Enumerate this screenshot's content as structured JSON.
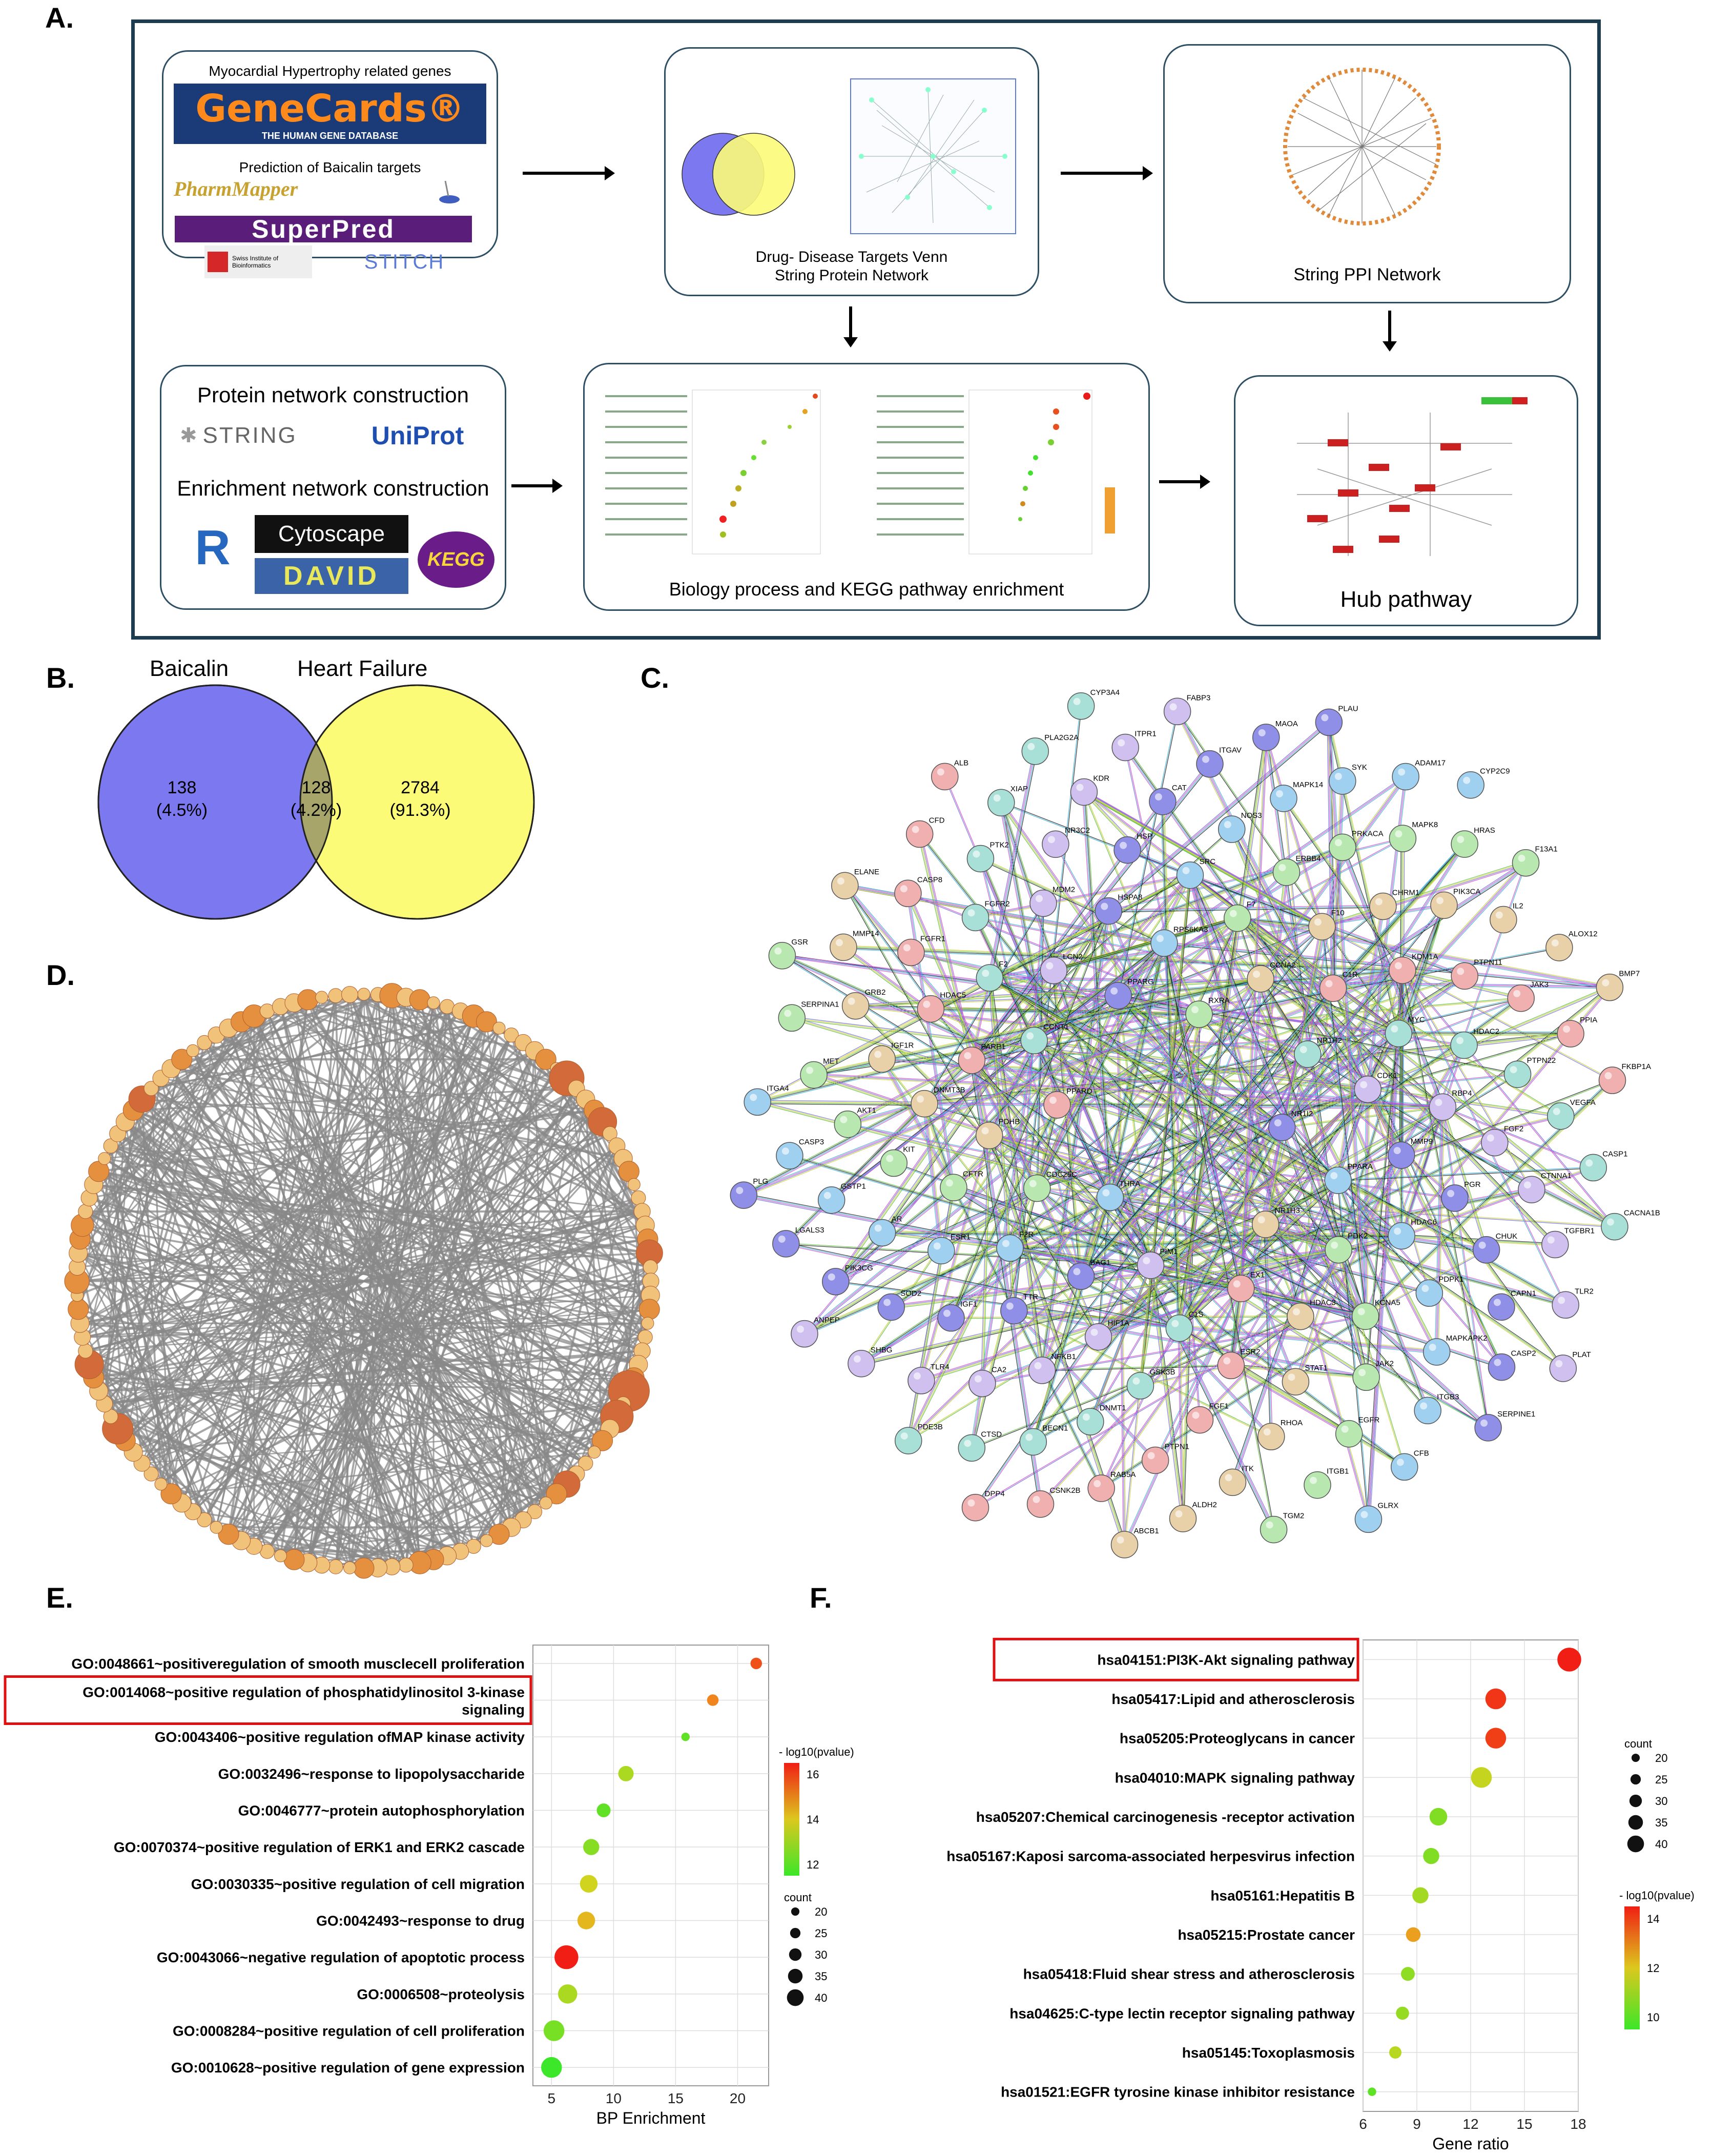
{
  "panels": {
    "a": "A.",
    "b": "B.",
    "c": "C.",
    "d": "D.",
    "e": "E.",
    "f": "F."
  },
  "panel_a": {
    "box1": {
      "title": "Myocardial Hypertrophy related genes",
      "genecards_logo": "GeneCards®",
      "genecards_sub": "THE HUMAN GENE DATABASE",
      "prediction_title": "Prediction of Baicalin targets",
      "pharmmapper_logo": "PharmMapper",
      "superpred_logo": "SuperPred",
      "sib_logo": "Swiss Institute of Bioinformatics",
      "stitch_logo": "STITCH"
    },
    "box2_caption_line1": "Drug- Disease Targets Venn",
    "box2_caption_line2": "String Protein Network",
    "box3_caption": "String PPI Network",
    "box4": {
      "protein_title": "Protein network construction",
      "string_logo": "STRING",
      "uniprot_logo": "UniProt",
      "enrichment_title": "Enrichment network construction",
      "r_logo": "R",
      "cytoscape_logo": "Cytoscape",
      "david_logo": "DAVID",
      "kegg_logo": "KEGG"
    },
    "box5_caption": "Biology process and KEGG pathway enrichment",
    "box6_caption": "Hub pathway"
  },
  "panel_b": {
    "left_title": "Baicalin",
    "right_title": "Heart Failure",
    "left_count": "138",
    "left_pct": "(4.5%)",
    "mid_count": "128",
    "mid_pct": "(4.2%)",
    "right_count": "2784",
    "right_pct": "(91.3%)",
    "colors": {
      "left": "#7b78f0",
      "right": "#fbfb78",
      "overlap": "#a8a56a"
    }
  },
  "panel_c_nodes": [
    "NR1I2",
    "THRA",
    "RXRA",
    "NR1H3",
    "PPARD",
    "NR1H2",
    "PIM1",
    "PPARG",
    "PPARA",
    "CDC25C",
    "CCNA2",
    "EX1",
    "CCNT1",
    "CDK1",
    "BAG1",
    "RPS6KA3",
    "PDK2",
    "PDHB",
    "C1R",
    "C1S",
    "LCN2",
    "MMP9",
    "F2R",
    "F7",
    "HDAC3",
    "PARP1",
    "MYC",
    "HIF1A",
    "HSPA8",
    "HDAC6",
    "CFTR",
    "F10",
    "ESR2",
    "F2",
    "RBP4",
    "TTR",
    "SRC",
    "KCNA5",
    "DNMT3B",
    "KDM1A",
    "GSK3B",
    "MDM2",
    "PGR",
    "ESR1",
    "ERBB4",
    "STAT1",
    "HDAC5",
    "HDAC2",
    "NFKB1",
    "HSP",
    "PDPK1",
    "KIT",
    "CHRM1",
    "FGF1",
    "FGFR2",
    "FGF2",
    "IGF1",
    "NOS3",
    "JAK2",
    "IGF1R",
    "PTPN11",
    "DNMT1",
    "NR3C2",
    "CHUK",
    "AR",
    "PRKACA",
    "RHOA",
    "FGFR1",
    "PTPN22",
    "CA2",
    "CAT",
    "MAPKAPK2",
    "AKT1",
    "PIK3CA",
    "PTPN1",
    "PTK2",
    "CTNNA1",
    "SOD2",
    "MAPK14",
    "EGFR",
    "GRB2",
    "JAK3",
    "BECN1",
    "KDR",
    "CAPN1",
    "GSTP1",
    "MAPK8",
    "ITK",
    "CASP8",
    "VEGFA",
    "TLR4",
    "ITGAV",
    "ITGB3",
    "MET",
    "IL2",
    "RAB5A",
    "XIAP",
    "TGFBR1",
    "PIK3CG",
    "SYK",
    "ITGB1",
    "MMP14",
    "PPIA",
    "CTSD",
    "ITPR1",
    "CASP2",
    "CASP3",
    "HRAS",
    "ALDH2",
    "CFD",
    "CASP1",
    "SHBG",
    "MAOA",
    "CFB",
    "SERPINA1",
    "ALOX12",
    "CSNK2B",
    "PLA2G2A",
    "TLR2",
    "LGALS3",
    "ADAM17",
    "TGM2",
    "ELANE",
    "FKBP1A",
    "PDE3B",
    "FABP3",
    "SERPINE1",
    "ITGA4",
    "F13A1",
    "ABCB1",
    "ALB",
    "CACNA1B",
    "ANPEP",
    "PLAU",
    "GLRX",
    "GSR",
    "BMP7",
    "DPP4",
    "CYP3A4",
    "PLAT",
    "PLG",
    "CYP2C9"
  ],
  "panel_e": {
    "chart_data": {
      "type": "scatter",
      "title": "",
      "xlabel": "BP Enrichment",
      "ylabel": "",
      "xlim": [
        3.5,
        22.5
      ],
      "xticks": [
        5,
        10,
        15,
        20
      ],
      "categories": [
        "GO:0048661~positiveregulation of smooth musclecell proliferation",
        "GO:0014068~positive regulation of phosphatidylinositol 3-kinase signaling",
        "GO:0043406~positive regulation ofMAP kinase activity",
        "GO:0032496~response to lipopolysaccharide",
        "GO:0046777~protein autophosphorylation",
        "GO:0070374~positive regulation of ERK1 and ERK2 cascade",
        "GO:0030335~positive regulation of cell migration",
        "GO:0042493~response to drug",
        "GO:0043066~negative regulation of apoptotic process",
        "GO:0006508~proteolysis",
        "GO:0008284~positive regulation of cell proliferation",
        "GO:0010628~positive regulation of gene expression"
      ],
      "x": [
        21.5,
        18,
        15.8,
        11,
        9.2,
        8.2,
        8,
        7.8,
        6.2,
        6.3,
        5.2,
        5
      ],
      "count": [
        22,
        22,
        18,
        27,
        25,
        28,
        30,
        30,
        38,
        32,
        34,
        34
      ],
      "neglog10p": [
        15.5,
        14.5,
        10.5,
        11.5,
        10.5,
        11,
        12,
        13,
        16.5,
        11.5,
        10.8,
        10
      ],
      "color_legend_title": "- log10(pvalue)",
      "color_ticks": [
        "16",
        "14",
        "12"
      ],
      "size_legend_title": "count",
      "size_ticks": [
        "20",
        "25",
        "30",
        "35",
        "40"
      ],
      "highlighted": [
        1
      ]
    }
  },
  "panel_f": {
    "chart_data": {
      "type": "scatter",
      "title": "",
      "xlabel": "Gene ratio",
      "ylabel": "",
      "xlim": [
        6,
        18
      ],
      "xticks": [
        6,
        9,
        12,
        15,
        18
      ],
      "categories": [
        "hsa04151:PI3K-Akt signaling pathway",
        "hsa05417:Lipid and atherosclerosis",
        "hsa05205:Proteoglycans in cancer",
        "hsa04010:MAPK signaling pathway",
        "hsa05207:Chemical carcinogenesis -receptor activation",
        "hsa05167:Kaposi sarcoma-associated herpesvirus infection",
        "hsa05161:Hepatitis B",
        "hsa05215:Prostate cancer",
        "hsa05418:Fluid shear stress and atherosclerosis",
        "hsa04625:C-type lectin receptor signaling pathway",
        "hsa05145:Toxoplasmosis",
        "hsa01521:EGFR tyrosine kinase inhibitor resistance"
      ],
      "x": [
        17.5,
        13.4,
        13.4,
        12.6,
        10.2,
        9.8,
        9.2,
        8.8,
        8.5,
        8.2,
        7.8,
        6.5
      ],
      "count": [
        38,
        34,
        34,
        34,
        30,
        28,
        28,
        26,
        25,
        24,
        23,
        18
      ],
      "neglog10p": [
        16,
        15.5,
        15.3,
        11,
        10,
        10,
        10.5,
        13,
        10.2,
        10.3,
        10.8,
        9.5
      ],
      "size_legend_title": "count",
      "size_ticks": [
        "20",
        "25",
        "30",
        "35",
        "40"
      ],
      "color_legend_title": "- log10(pvalue)",
      "color_ticks": [
        "14",
        "12",
        "10"
      ],
      "highlighted": [
        0
      ]
    }
  }
}
